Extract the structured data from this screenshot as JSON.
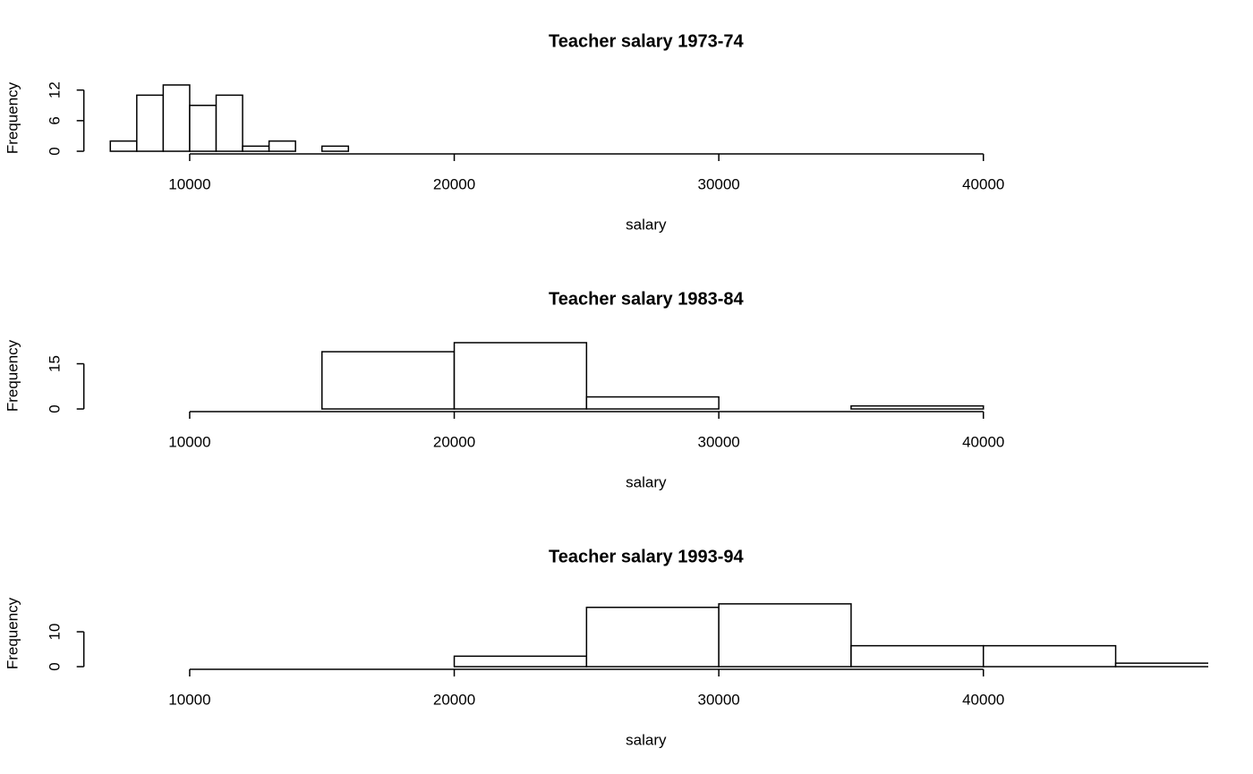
{
  "chart_data": [
    {
      "type": "histogram",
      "title": "Teacher salary 1973-74",
      "x_label": "salary",
      "y_label": "Frequency",
      "bins": [
        7000,
        8000,
        9000,
        10000,
        11000,
        12000,
        13000,
        14000,
        15000,
        16000
      ],
      "values": [
        2,
        11,
        13,
        9,
        11,
        1,
        2,
        0,
        1
      ],
      "color": "#ffffff",
      "xlim": [
        6000,
        48500
      ],
      "xticks": [
        10000,
        20000,
        30000,
        40000
      ],
      "ylim": [
        0,
        13
      ],
      "yticks": [
        0,
        6,
        12
      ]
    },
    {
      "type": "histogram",
      "title": "Teacher salary 1983-84",
      "x_label": "salary",
      "y_label": "Frequency",
      "bins": [
        15000,
        20000,
        25000,
        30000,
        35000,
        40000
      ],
      "values": [
        19,
        22,
        4,
        0,
        1
      ],
      "color": "#ffffff",
      "xlim": [
        6000,
        48500
      ],
      "xticks": [
        10000,
        20000,
        30000,
        40000
      ],
      "ylim": [
        0,
        22
      ],
      "yticks": [
        0,
        15
      ]
    },
    {
      "type": "histogram",
      "title": "Teacher salary 1993-94",
      "x_label": "salary",
      "y_label": "Frequency",
      "bins": [
        20000,
        25000,
        30000,
        35000,
        40000,
        45000,
        50000
      ],
      "values": [
        3,
        17,
        18,
        6,
        6,
        1
      ],
      "color": "#ffffff",
      "xlim": [
        6000,
        48500
      ],
      "xticks": [
        10000,
        20000,
        30000,
        40000
      ],
      "ylim": [
        0,
        19
      ],
      "yticks": [
        0,
        10
      ]
    }
  ]
}
